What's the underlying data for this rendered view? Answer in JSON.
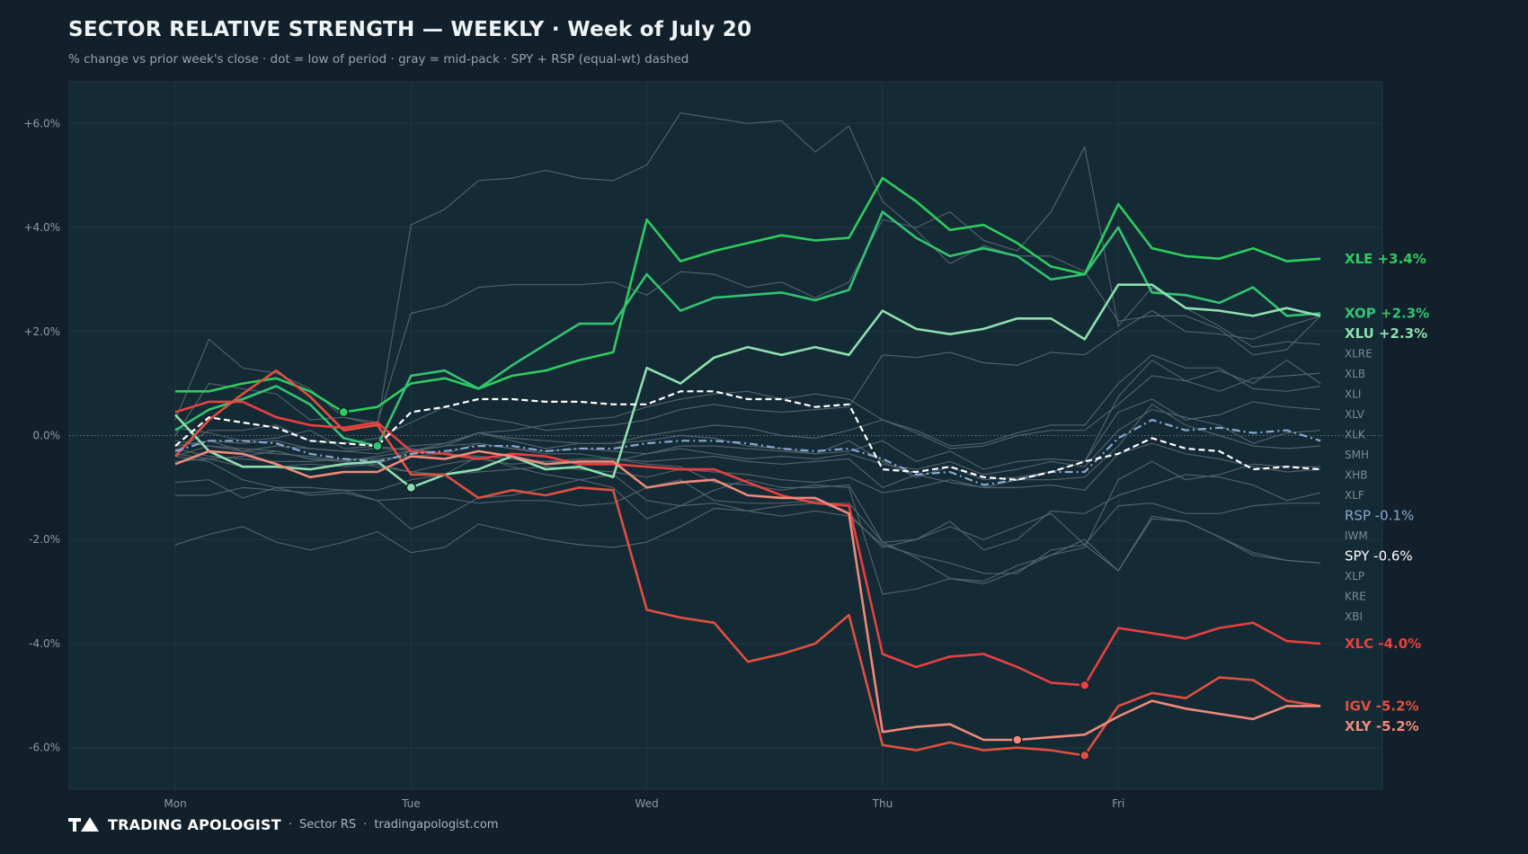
{
  "header": {
    "title": "SECTOR RELATIVE STRENGTH — WEEKLY · Week of July 20",
    "subtitle": "% change vs prior week's close · dot = low of period · gray = mid-pack · SPY + RSP (equal-wt) dashed"
  },
  "footer": {
    "brand": "TRADING APOLOGIST",
    "separator": "·",
    "section": "Sector RS",
    "site": "tradingapologist.com"
  },
  "colors": {
    "background": "#11202a",
    "plot_background": "#142a35",
    "gray": "#56666e",
    "green_bright": "#2ecc5f",
    "green_mid": "#34c372",
    "green_light": "#8fdfae",
    "red_bright": "#e84040",
    "red_mid": "#e05040",
    "red_light": "#ef8a7a",
    "rsp": "#8aa8cf",
    "spy": "#ffffff"
  },
  "chart_data": {
    "type": "line",
    "x_ticks": [
      "Mon",
      "Tue",
      "Wed",
      "Thu",
      "Fri"
    ],
    "x_range": [
      -0.45,
      5.12
    ],
    "ylim": [
      -6.8,
      6.8
    ],
    "y_ticks": [
      6,
      4,
      2,
      0,
      -2,
      -4,
      -6
    ],
    "y_tick_labels": [
      "+6.0%",
      "+4.0%",
      "+2.0%",
      "0.0%",
      "-2.0%",
      "-4.0%",
      "-6.0%"
    ],
    "points_per_day": 7,
    "highlighted": [
      {
        "key": "XLE",
        "label": "XLE +3.4%",
        "color": "#2ecc5f",
        "values": [
          0.85,
          0.85,
          1.0,
          1.1,
          0.85,
          0.45,
          0.55,
          1.0,
          1.1,
          0.9,
          1.15,
          1.25,
          1.45,
          1.6,
          4.15,
          3.35,
          3.55,
          3.7,
          3.85,
          3.75,
          3.8,
          4.95,
          4.5,
          3.95,
          4.05,
          3.7,
          3.25,
          3.1,
          4.45,
          3.6,
          3.45,
          3.4,
          3.6,
          3.35,
          3.4
        ],
        "low": {
          "index": 5,
          "value": 0.45
        }
      },
      {
        "key": "XOP",
        "label": "XOP +2.3%",
        "color": "#34c372",
        "values": [
          0.1,
          0.5,
          0.7,
          0.95,
          0.6,
          -0.05,
          -0.2,
          1.15,
          1.25,
          0.9,
          1.35,
          1.75,
          2.15,
          2.15,
          3.1,
          2.4,
          2.65,
          2.7,
          2.75,
          2.6,
          2.8,
          4.3,
          3.8,
          3.45,
          3.6,
          3.45,
          3.0,
          3.1,
          4.0,
          2.75,
          2.7,
          2.55,
          2.85,
          2.3,
          2.35
        ],
        "low": {
          "index": 6,
          "value": -0.2
        }
      },
      {
        "key": "XLU",
        "label": "XLU +2.3%",
        "color": "#8fdfae",
        "values": [
          0.4,
          -0.3,
          -0.6,
          -0.6,
          -0.65,
          -0.55,
          -0.5,
          -1.0,
          -0.75,
          -0.65,
          -0.4,
          -0.65,
          -0.6,
          -0.8,
          1.3,
          1.0,
          1.5,
          1.7,
          1.55,
          1.7,
          1.55,
          2.4,
          2.05,
          1.95,
          2.05,
          2.25,
          2.25,
          1.85,
          2.9,
          2.9,
          2.45,
          2.4,
          2.3,
          2.45,
          2.3
        ],
        "low": {
          "index": 7,
          "value": -1.0
        }
      },
      {
        "key": "XLC",
        "label": "XLC -4.0%",
        "color": "#e84040",
        "values": [
          0.45,
          0.65,
          0.65,
          0.35,
          0.2,
          0.15,
          0.25,
          -0.3,
          -0.35,
          -0.45,
          -0.35,
          -0.4,
          -0.55,
          -0.55,
          -0.6,
          -0.65,
          -0.65,
          -0.9,
          -1.15,
          -1.3,
          -1.35,
          -4.2,
          -4.45,
          -4.25,
          -4.2,
          -4.45,
          -4.75,
          -4.8,
          -3.7,
          -3.8,
          -3.9,
          -3.7,
          -3.6,
          -3.95,
          -4.0
        ],
        "low": {
          "index": 27,
          "value": -4.8
        }
      },
      {
        "key": "IGV",
        "label": "IGV -5.2%",
        "color": "#e05040",
        "values": [
          -0.4,
          0.3,
          0.8,
          1.25,
          0.75,
          0.1,
          0.2,
          -0.75,
          -0.75,
          -1.2,
          -1.05,
          -1.15,
          -1.0,
          -1.05,
          -3.35,
          -3.5,
          -3.6,
          -4.35,
          -4.2,
          -4.0,
          -3.45,
          -5.95,
          -6.05,
          -5.9,
          -6.05,
          -6.0,
          -6.05,
          -6.15,
          -5.2,
          -4.95,
          -5.05,
          -4.65,
          -4.7,
          -5.1,
          -5.2
        ],
        "low": {
          "index": 27,
          "value": -6.15
        }
      },
      {
        "key": "XLY",
        "label": "XLY -5.2%",
        "color": "#ef8a7a",
        "values": [
          -0.55,
          -0.3,
          -0.35,
          -0.55,
          -0.8,
          -0.7,
          -0.7,
          -0.4,
          -0.45,
          -0.3,
          -0.4,
          -0.55,
          -0.5,
          -0.5,
          -1.0,
          -0.9,
          -0.85,
          -1.15,
          -1.2,
          -1.2,
          -1.5,
          -5.7,
          -5.6,
          -5.55,
          -5.85,
          -5.85,
          -5.8,
          -5.75,
          -5.4,
          -5.1,
          -5.25,
          -5.35,
          -5.45,
          -5.2,
          -5.2
        ],
        "low": {
          "index": 25,
          "value": -5.85
        }
      }
    ],
    "benchmarks": [
      {
        "key": "RSP",
        "label": "RSP -0.1%",
        "color": "#8aa8cf",
        "dash": "dashdot",
        "values": [
          -0.3,
          -0.1,
          -0.1,
          -0.15,
          -0.35,
          -0.45,
          -0.5,
          -0.35,
          -0.3,
          -0.2,
          -0.2,
          -0.3,
          -0.25,
          -0.25,
          -0.15,
          -0.1,
          -0.1,
          -0.15,
          -0.25,
          -0.3,
          -0.25,
          -0.45,
          -0.75,
          -0.7,
          -0.95,
          -0.85,
          -0.7,
          -0.7,
          -0.05,
          0.3,
          0.1,
          0.15,
          0.05,
          0.1,
          -0.1
        ]
      },
      {
        "key": "SPY",
        "label": "SPY -0.6%",
        "color": "#ffffff",
        "dash": "dashed",
        "values": [
          -0.2,
          0.35,
          0.25,
          0.15,
          -0.1,
          -0.15,
          -0.2,
          0.45,
          0.55,
          0.7,
          0.7,
          0.65,
          0.65,
          0.6,
          0.6,
          0.85,
          0.85,
          0.7,
          0.7,
          0.55,
          0.6,
          -0.65,
          -0.7,
          -0.6,
          -0.8,
          -0.85,
          -0.7,
          -0.5,
          -0.35,
          -0.05,
          -0.25,
          -0.3,
          -0.65,
          -0.6,
          -0.65
        ]
      }
    ],
    "midpack": [
      {
        "label": "XLI",
        "values": [
          0.3,
          1.85,
          1.3,
          1.2,
          0.9,
          0.35,
          0.25,
          2.35,
          2.5,
          2.85,
          2.9,
          2.9,
          2.9,
          2.95,
          2.7,
          3.15,
          3.1,
          2.85,
          2.95,
          2.65,
          2.95,
          4.15,
          4.0,
          4.3,
          3.75,
          3.55,
          4.3,
          5.55,
          2.1,
          2.85,
          2.45,
          2.1,
          1.7,
          1.8,
          1.75
        ]
      },
      {
        "label": "XLRE",
        "values": [
          0.0,
          1.0,
          0.9,
          0.8,
          0.3,
          0.35,
          0.2,
          4.05,
          4.35,
          4.9,
          4.95,
          5.1,
          4.95,
          4.9,
          5.2,
          6.2,
          6.1,
          6.0,
          6.05,
          5.45,
          5.95,
          4.5,
          3.95,
          3.3,
          3.65,
          3.45,
          3.45,
          3.15,
          2.2,
          2.3,
          2.3,
          2.05,
          1.55,
          1.65,
          2.3
        ]
      },
      {
        "label": "XLB",
        "values": [
          -0.3,
          0.1,
          0.1,
          0.2,
          -0.1,
          -0.15,
          -0.05,
          0.25,
          0.55,
          0.35,
          0.25,
          0.1,
          0.15,
          0.2,
          0.3,
          0.5,
          0.6,
          0.5,
          0.45,
          0.5,
          0.55,
          1.55,
          1.5,
          1.6,
          1.4,
          1.35,
          1.6,
          1.55,
          2.0,
          2.4,
          2.0,
          1.95,
          1.85,
          2.1,
          2.3
        ]
      },
      {
        "label": "SMH",
        "values": [
          0.15,
          0.05,
          -0.1,
          -0.05,
          0.1,
          -0.25,
          -0.2,
          -0.3,
          -0.2,
          0.05,
          0.1,
          0.2,
          0.3,
          0.35,
          0.55,
          0.7,
          0.8,
          0.85,
          0.7,
          0.8,
          0.7,
          0.3,
          0.1,
          -0.2,
          -0.15,
          0.05,
          0.2,
          0.2,
          1.0,
          1.55,
          1.3,
          1.3,
          0.9,
          0.85,
          0.95
        ]
      },
      {
        "label": "XLV",
        "values": [
          -0.1,
          -0.2,
          -0.3,
          -0.2,
          -0.25,
          -0.3,
          -0.25,
          -0.25,
          -0.35,
          -0.15,
          -0.25,
          -0.3,
          -0.25,
          -0.3,
          -0.35,
          -0.2,
          -0.2,
          -0.25,
          -0.3,
          -0.35,
          -0.3,
          -0.1,
          -0.5,
          -0.3,
          -0.65,
          -0.5,
          -0.45,
          -0.5,
          0.75,
          1.45,
          1.05,
          0.85,
          1.1,
          1.15,
          1.2
        ]
      },
      {
        "label": "XLK",
        "values": [
          -0.2,
          -0.1,
          -0.15,
          -0.1,
          -0.25,
          -0.3,
          -0.35,
          -0.2,
          -0.15,
          0.05,
          -0.05,
          -0.1,
          -0.15,
          -0.15,
          0.0,
          0.1,
          0.2,
          0.15,
          0.0,
          -0.05,
          0.1,
          0.3,
          0.05,
          -0.25,
          -0.2,
          0.0,
          0.1,
          0.1,
          0.6,
          1.15,
          1.05,
          1.25,
          1.0,
          1.45,
          1.0
        ]
      },
      {
        "label": "XHB",
        "values": [
          -0.4,
          -0.2,
          -0.25,
          -0.3,
          -0.45,
          -0.5,
          -0.4,
          -0.3,
          -0.15,
          0.05,
          -0.1,
          -0.25,
          -0.15,
          -0.15,
          -0.1,
          0.0,
          -0.05,
          -0.2,
          -0.25,
          -0.35,
          -0.1,
          -0.5,
          -0.8,
          -0.6,
          -0.85,
          -0.8,
          -0.7,
          -0.5,
          0.45,
          0.7,
          0.3,
          0.4,
          0.65,
          0.55,
          0.5
        ]
      },
      {
        "label": "XLF",
        "values": [
          -0.35,
          -0.45,
          -0.4,
          -0.3,
          -0.45,
          -0.5,
          -0.6,
          -0.7,
          -0.55,
          -0.45,
          -0.55,
          -0.5,
          -0.5,
          -0.5,
          -0.35,
          -0.25,
          -0.35,
          -0.45,
          -0.4,
          -0.45,
          -0.35,
          -0.55,
          -0.65,
          -0.5,
          -0.75,
          -0.65,
          -0.5,
          -0.6,
          0.1,
          0.5,
          0.35,
          0.2,
          -0.15,
          0.05,
          0.1
        ]
      },
      {
        "label": "IWM",
        "values": [
          -0.25,
          -0.4,
          -0.45,
          -0.5,
          -0.5,
          -0.45,
          -0.45,
          -0.4,
          -0.35,
          -0.4,
          -0.45,
          -0.5,
          -0.45,
          -0.45,
          -0.5,
          -0.45,
          -0.4,
          -0.5,
          -0.55,
          -0.5,
          -0.45,
          -1.0,
          -0.75,
          -0.9,
          -1.0,
          -0.85,
          -0.85,
          -0.8,
          -0.2,
          0.6,
          0.2,
          0.0,
          -0.2,
          -0.25,
          -0.2
        ]
      },
      {
        "label": "XLP",
        "values": [
          -0.5,
          -0.45,
          -0.6,
          -0.6,
          -0.55,
          -0.6,
          -0.55,
          -0.7,
          -0.75,
          -0.7,
          -0.65,
          -0.6,
          -0.65,
          -0.7,
          -0.8,
          -0.65,
          -0.7,
          -0.75,
          -0.85,
          -0.9,
          -0.8,
          -1.1,
          -1.0,
          -0.85,
          -1.0,
          -1.0,
          -0.95,
          -1.05,
          -0.35,
          -0.15,
          -0.35,
          -0.45,
          -0.6,
          -0.7,
          -0.65
        ]
      },
      {
        "label": "KRE",
        "values": [
          -0.9,
          -0.85,
          -1.2,
          -1.0,
          -1.15,
          -1.1,
          -1.25,
          -1.8,
          -1.55,
          -1.2,
          -1.15,
          -1.0,
          -0.85,
          -0.75,
          -1.25,
          -1.35,
          -1.05,
          -0.85,
          -1.0,
          -1.0,
          -0.95,
          -2.05,
          -2.0,
          -1.65,
          -2.2,
          -2.0,
          -1.45,
          -1.5,
          -1.15,
          -0.95,
          -0.75,
          -0.8,
          -0.95,
          -1.25,
          -1.1
        ]
      },
      {
        "label": "XBI",
        "values": [
          -2.1,
          -1.9,
          -1.75,
          -2.05,
          -2.2,
          -2.05,
          -1.85,
          -2.25,
          -2.15,
          -1.7,
          -1.85,
          -2.0,
          -2.1,
          -2.15,
          -2.05,
          -1.75,
          -1.4,
          -1.45,
          -1.55,
          -1.45,
          -1.55,
          -2.1,
          -2.3,
          -2.45,
          -2.65,
          -2.65,
          -2.2,
          -2.1,
          -2.6,
          -1.55,
          -1.65,
          -1.95,
          -2.25,
          -2.4,
          -2.45
        ]
      },
      {
        "label": "",
        "values": [
          -1.15,
          -1.15,
          -1.0,
          -1.05,
          -1.1,
          -1.05,
          -1.25,
          -1.2,
          -1.2,
          -1.3,
          -1.25,
          -1.25,
          -1.35,
          -1.3,
          -1.0,
          -0.85,
          -1.25,
          -1.3,
          -1.3,
          -1.25,
          -1.5,
          -2.15,
          -2.0,
          -1.75,
          -2.0,
          -1.75,
          -1.5,
          -2.1,
          -1.35,
          -1.3,
          -1.5,
          -1.5,
          -1.35,
          -1.3,
          -1.3
        ]
      },
      {
        "label": "",
        "values": [
          -0.4,
          -0.5,
          -0.85,
          -1.0,
          -1.0,
          -1.05,
          -1.05,
          -0.85,
          -0.75,
          -0.4,
          -0.6,
          -0.75,
          -0.85,
          -1.0,
          -1.6,
          -1.35,
          -1.3,
          -1.45,
          -1.35,
          -1.3,
          -1.3,
          -2.05,
          -2.35,
          -2.75,
          -2.8,
          -2.5,
          -2.3,
          -2.15,
          -0.85,
          -0.5,
          -0.85,
          -0.75,
          -0.55,
          -0.6,
          -0.6
        ]
      },
      {
        "label": "",
        "values": [
          -0.2,
          -0.1,
          -0.3,
          -0.35,
          -0.4,
          -0.5,
          -0.55,
          -0.3,
          -0.2,
          -0.15,
          -0.25,
          -0.35,
          -0.35,
          -0.45,
          -0.55,
          -0.6,
          -0.9,
          -0.95,
          -1.05,
          -0.95,
          -1.0,
          -3.05,
          -2.95,
          -2.75,
          -2.85,
          -2.6,
          -2.3,
          -2.0,
          -2.6,
          -1.6,
          -1.65,
          -1.95,
          -2.3,
          -2.4,
          -2.45
        ]
      }
    ]
  }
}
